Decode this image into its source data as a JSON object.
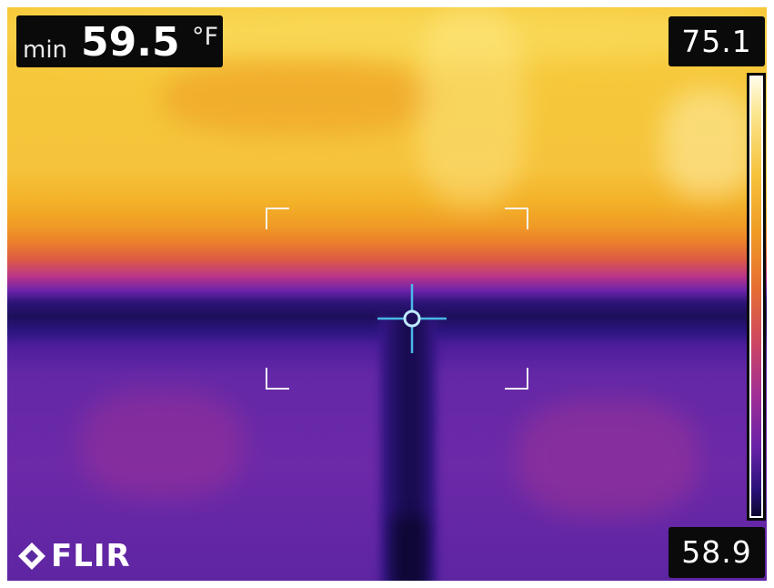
{
  "min_reading": {
    "label": "min",
    "value": "59.5",
    "unit": "°F"
  },
  "scale": {
    "max_label": "75.1",
    "min_label": "58.9"
  },
  "logo": {
    "text": "FLIR"
  },
  "icons": {
    "crosshair": "spot-meter-crosshair-icon",
    "logo": "flir-diamond-icon"
  },
  "colors": {
    "hot": "#f7c93a",
    "warm": "#ec7f2c",
    "cool": "#6428a6",
    "cold": "#1e0f5a"
  }
}
